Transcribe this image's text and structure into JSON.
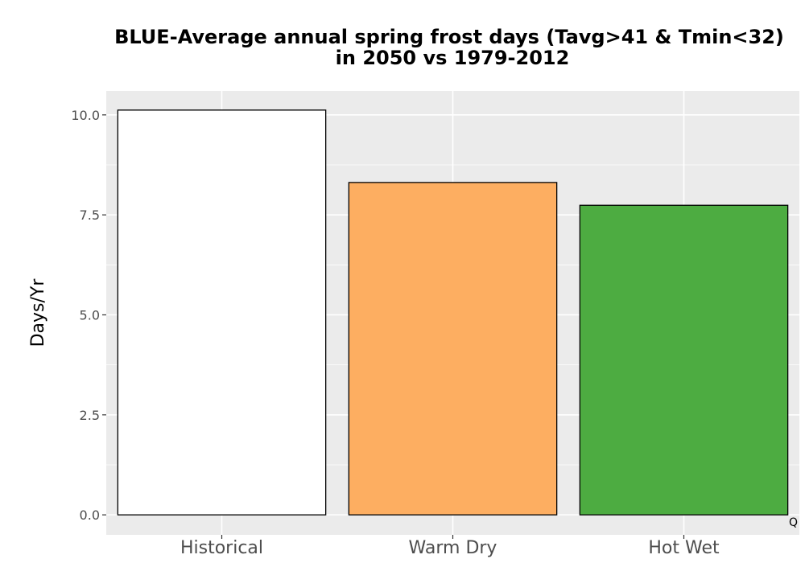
{
  "chart_data": {
    "type": "bar",
    "title_lines": [
      "BLUE-Average annual spring frost days (Tavg>41 & Tmin<32)",
      "in 2050 vs 1979-2012"
    ],
    "xlabel": "",
    "ylabel": "Days/Yr",
    "categories": [
      "Historical",
      "Warm Dry",
      "Hot Wet"
    ],
    "values": [
      10.12,
      8.31,
      7.74
    ],
    "colors": [
      "#ffffff",
      "#fdae61",
      "#4dac41"
    ],
    "bar_outline": "#000000",
    "ylim": [
      -0.5,
      10.6
    ],
    "yticks": [
      0,
      2.5,
      5,
      7.5,
      10
    ],
    "ytick_labels": [
      "0.0",
      "2.5",
      "5.0",
      "7.5",
      "10.0"
    ],
    "grid": true,
    "panel_background": "#ebebeb",
    "grid_color": "#ffffff",
    "legend": "none",
    "corner_text": "Q"
  }
}
